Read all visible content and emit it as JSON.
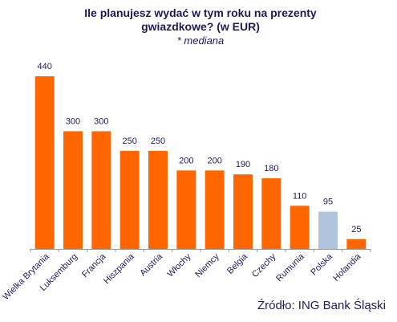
{
  "chart_data": {
    "type": "bar",
    "title_lines": [
      "Ile planujesz wydać w tym roku na prezenty",
      "gwiazdkowe? (w EUR)"
    ],
    "subtitle": "* mediana",
    "categories": [
      "Wielka Brytania",
      "Luksemburg",
      "Francja",
      "Hiszpania",
      "Austria",
      "Włochy",
      "Niemcy",
      "Belgia",
      "Czechy",
      "Rumunia",
      "Polska",
      "Holandia"
    ],
    "values": [
      440,
      300,
      300,
      250,
      250,
      200,
      200,
      190,
      180,
      110,
      95,
      25
    ],
    "value_labels": [
      "440",
      "300",
      "300",
      "250",
      "250",
      "200",
      "200",
      "190",
      "180",
      "110",
      "95",
      "25"
    ],
    "highlight_category": "Polska",
    "ylim": [
      0,
      440
    ],
    "grid": false,
    "legend": "none"
  },
  "colors": {
    "bar": "#ff6600",
    "highlight": "#b0c4de",
    "text": "#1f1a5a",
    "axis": "#999999"
  },
  "source": "Źródło: ING Bank Śląski"
}
